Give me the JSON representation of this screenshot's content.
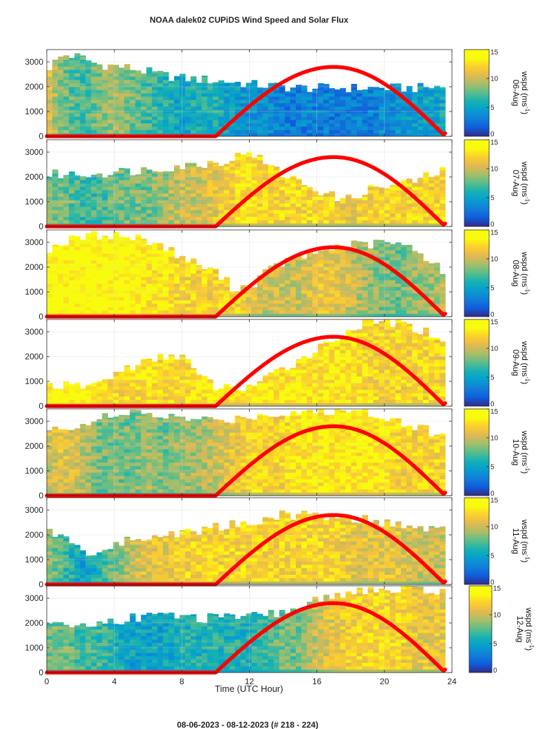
{
  "title": "NOAA dalek02 CUPiDS Wind Speed and Solar Flux",
  "footer": "08-06-2023 - 08-12-2023   (# 218 - 224)",
  "chart_data": {
    "type": "heatmap",
    "xlabel": "Time (UTC Hour)",
    "x_ticks": [
      0,
      4,
      8,
      12,
      16,
      20,
      24
    ],
    "xlim": [
      0,
      24
    ],
    "ylim": [
      0,
      3500
    ],
    "y_ticks": [
      0,
      1000,
      2000,
      3000
    ],
    "grid": true,
    "colorbar": {
      "colormap": "parula",
      "clim": [
        0,
        15
      ],
      "ticks": [
        0,
        5,
        10,
        15
      ],
      "label_prefix": "wspd (ms",
      "label_exp": "-1",
      "label_suffix": ")"
    },
    "overlay": {
      "description": "solar flux curve (red)",
      "color": "#ff0000",
      "sunrise_hour": 10,
      "peak_hour": 17,
      "sunset_hour": 23.6,
      "peak_height": 2800
    },
    "panels": [
      {
        "date": "06-Aug",
        "top_m": [
          2700,
          3300,
          3200,
          2900,
          2850,
          2750,
          2600,
          2450,
          2350,
          2300,
          2250,
          2200,
          2100,
          2050,
          2000,
          1950,
          1950,
          1950,
          1950,
          1950,
          1950,
          1950,
          1950,
          2000,
          2000
        ],
        "ws": [
          11,
          8,
          7,
          8,
          9,
          8,
          7,
          6,
          5,
          6,
          6,
          5,
          4,
          4,
          3,
          3,
          3,
          3,
          3,
          3,
          4,
          4,
          5,
          5,
          6
        ]
      },
      {
        "date": "07-Aug",
        "top_m": [
          2100,
          2100,
          2100,
          2150,
          2200,
          2250,
          2300,
          2400,
          2450,
          2500,
          2600,
          2700,
          3100,
          2500,
          2100,
          1800,
          1500,
          1200,
          1100,
          1500,
          1600,
          1700,
          1900,
          2100,
          2400
        ],
        "ws": [
          8,
          8,
          7,
          7,
          8,
          8,
          8,
          9,
          10,
          10,
          11,
          12,
          13,
          12,
          12,
          12,
          12,
          12,
          11,
          12,
          12,
          12,
          12,
          12,
          12
        ]
      },
      {
        "date": "08-Aug",
        "top_m": [
          2700,
          3000,
          3200,
          3300,
          3300,
          3200,
          3100,
          2800,
          2400,
          2100,
          1800,
          1200,
          1200,
          1800,
          2200,
          2400,
          2600,
          2800,
          2900,
          2900,
          3000,
          2900,
          2600,
          2200,
          1400
        ],
        "ws": [
          14,
          14,
          14,
          14,
          14,
          14,
          13,
          13,
          12,
          12,
          12,
          12,
          11,
          10,
          10,
          10,
          11,
          11,
          10,
          9,
          8,
          8,
          9,
          9,
          10
        ]
      },
      {
        "date": "09-Aug",
        "top_m": [
          900,
          800,
          800,
          900,
          1300,
          1600,
          1800,
          2000,
          2100,
          1200,
          800,
          700,
          800,
          1100,
          1500,
          1900,
          2300,
          2700,
          3100,
          3400,
          3400,
          3300,
          3100,
          2900,
          2500
        ],
        "ws": [
          13,
          14,
          14,
          13,
          12,
          12,
          13,
          12,
          12,
          13,
          13,
          13,
          13,
          13,
          13,
          13,
          13,
          13,
          13,
          12,
          12,
          12,
          12,
          12,
          12
        ]
      },
      {
        "date": "10-Aug",
        "top_m": [
          2600,
          2700,
          2900,
          3100,
          3200,
          3300,
          3300,
          3200,
          3100,
          3100,
          3000,
          3100,
          3200,
          3300,
          3300,
          3400,
          3400,
          3400,
          3400,
          3400,
          3200,
          3000,
          2800,
          2500,
          2200
        ],
        "ws": [
          10,
          11,
          10,
          8,
          8,
          8,
          9,
          8,
          9,
          9,
          10,
          11,
          12,
          12,
          12,
          13,
          13,
          13,
          13,
          13,
          13,
          12,
          12,
          12,
          12
        ]
      },
      {
        "date": "11-Aug",
        "top_m": [
          2200,
          1900,
          1400,
          1200,
          1600,
          1800,
          1900,
          2000,
          2100,
          2200,
          2300,
          2400,
          2500,
          2700,
          2800,
          2800,
          2800,
          2800,
          2700,
          2600,
          2500,
          2400,
          2300,
          2200,
          2100
        ],
        "ws": [
          9,
          7,
          5,
          6,
          8,
          10,
          11,
          11,
          12,
          12,
          12,
          12,
          12,
          12,
          12,
          12,
          12,
          12,
          11,
          11,
          11,
          11,
          10,
          10,
          10
        ]
      },
      {
        "date": "12-Aug",
        "top_m": [
          1900,
          1900,
          1900,
          2000,
          2100,
          2200,
          2300,
          2300,
          2300,
          2200,
          2200,
          2200,
          2250,
          2300,
          2450,
          2650,
          2900,
          3100,
          3300,
          3300,
          3300,
          3300,
          3300,
          3300,
          3300
        ],
        "ws": [
          8,
          8,
          7,
          7,
          6,
          5,
          5,
          5,
          6,
          6,
          6,
          6,
          6,
          7,
          8,
          8,
          10,
          11,
          12,
          12,
          12,
          12,
          11,
          11,
          11
        ]
      }
    ]
  }
}
